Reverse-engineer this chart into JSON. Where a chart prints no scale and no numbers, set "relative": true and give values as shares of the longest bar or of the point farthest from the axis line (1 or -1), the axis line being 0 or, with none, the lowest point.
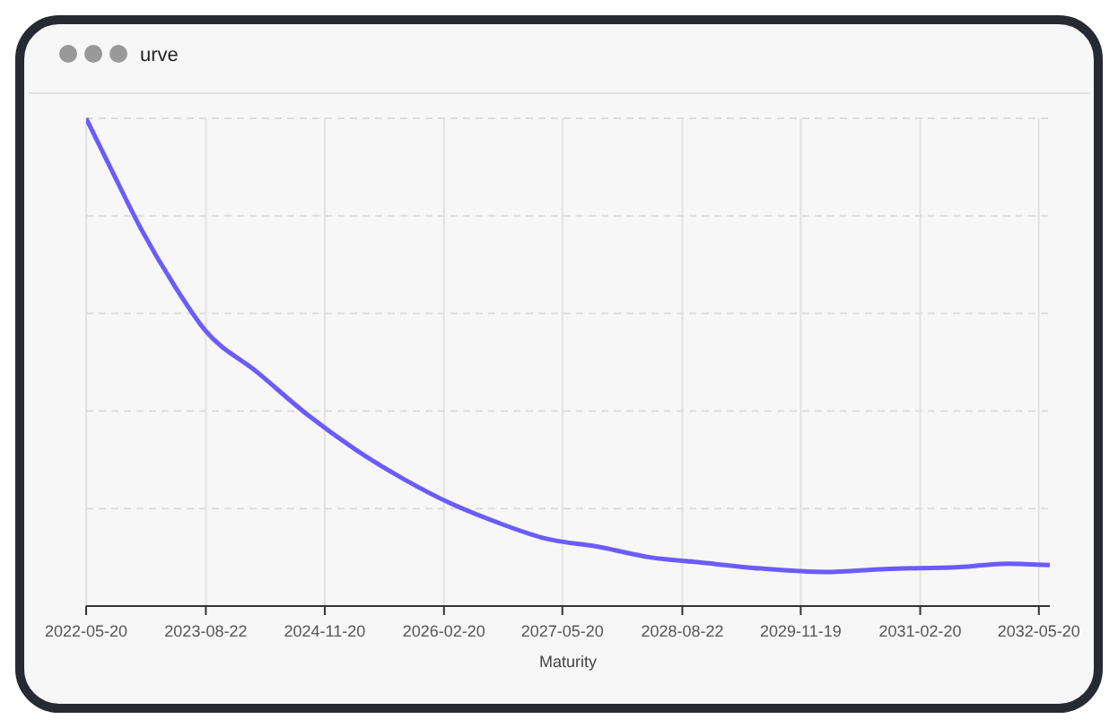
{
  "chart_data": {
    "type": "line",
    "title": "urve",
    "xlabel": "Maturity",
    "relative": true,
    "grid": true,
    "marker": "none",
    "line_style": "solid",
    "x": [
      "2022-05-20",
      "2022-08-20",
      "2022-12-20",
      "2023-04-20",
      "2023-08-20",
      "2024-03-05",
      "2024-09-20",
      "2025-03-20",
      "2025-09-20",
      "2026-03-20",
      "2026-09-20",
      "2027-03-05",
      "2027-10-20",
      "2028-04-20",
      "2028-10-20",
      "2029-06-20",
      "2030-02-20",
      "2030-10-05",
      "2031-07-20",
      "2032-01-20",
      "2032-07-01"
    ],
    "series": [
      {
        "color": "#6a5cff",
        "values": [
          1,
          0.9,
          0.77,
          0.66,
          0.565,
          0.48,
          0.39,
          0.32,
          0.26,
          0.21,
          0.17,
          0.14,
          0.12,
          0.1,
          0.09,
          0.077,
          0.07,
          0.076,
          0.08,
          0.087,
          0.084
        ]
      }
    ],
    "xlim": [
      "2022-05-20",
      "2032-07-01"
    ],
    "xticks": [
      {
        "value": "2022-05-20",
        "label": "2022-05-20"
      },
      {
        "value": "2023-08-22",
        "label": "2023-08-22"
      },
      {
        "value": "2024-11-20",
        "label": "2024-11-20"
      },
      {
        "value": "2026-02-20",
        "label": "2026-02-20"
      },
      {
        "value": "2027-05-20",
        "label": "2027-05-20"
      },
      {
        "value": "2028-08-22",
        "label": "2028-08-22"
      },
      {
        "value": "2029-11-19",
        "label": "2029-11-19"
      },
      {
        "value": "2031-02-20",
        "label": "2031-02-20"
      },
      {
        "value": "2032-05-20",
        "label": "2032-05-20"
      }
    ]
  }
}
